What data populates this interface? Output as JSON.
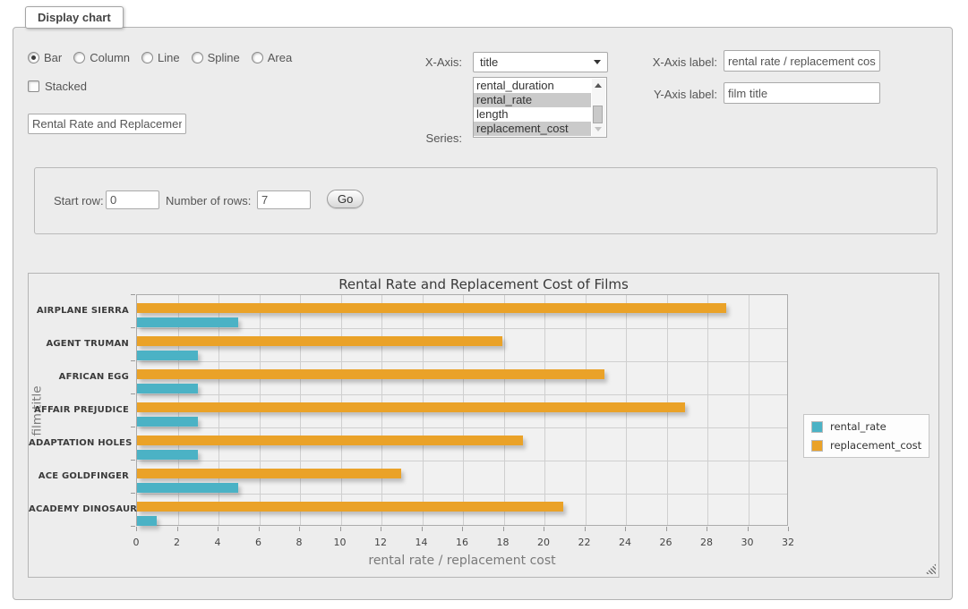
{
  "panel": {
    "legend_title": "Display chart",
    "chart_types": [
      {
        "label": "Bar",
        "checked": true
      },
      {
        "label": "Column",
        "checked": false
      },
      {
        "label": "Line",
        "checked": false
      },
      {
        "label": "Spline",
        "checked": false
      },
      {
        "label": "Area",
        "checked": false
      }
    ],
    "stacked_label": "Stacked",
    "chart_title_value": "Rental Rate and Replacement Cost of Films",
    "x_axis": {
      "label": "X-Axis:",
      "value": "title"
    },
    "series": {
      "label": "Series:",
      "options": [
        {
          "label": "rental_duration",
          "selected": false
        },
        {
          "label": "rental_rate",
          "selected": true
        },
        {
          "label": "length",
          "selected": false
        },
        {
          "label": "replacement_cost",
          "selected": true
        }
      ]
    },
    "x_axis_label": {
      "label": "X-Axis label:",
      "value": "rental rate / replacement cost"
    },
    "y_axis_label": {
      "label": "Y-Axis label:",
      "value": "film title"
    }
  },
  "rows_bar": {
    "start_row": {
      "label": "Start row:",
      "value": "0"
    },
    "num_rows": {
      "label": "Number of rows:",
      "value": "7"
    },
    "go_label": "Go"
  },
  "chart_data": {
    "type": "bar",
    "orientation": "horizontal",
    "title": "Rental Rate and Replacement Cost of Films",
    "xlabel": "rental rate / replacement cost",
    "ylabel": "film title",
    "categories": [
      "AIRPLANE SIERRA",
      "AGENT TRUMAN",
      "AFRICAN EGG",
      "AFFAIR PREJUDICE",
      "ADAPTATION HOLES",
      "ACE GOLDFINGER",
      "ACADEMY DINOSAUR"
    ],
    "series": [
      {
        "name": "rental_rate",
        "color": "#4bb2c5",
        "values": [
          4.99,
          2.99,
          2.99,
          2.99,
          2.99,
          4.99,
          0.99
        ]
      },
      {
        "name": "replacement_cost",
        "color": "#eaa228",
        "values": [
          28.99,
          17.99,
          22.99,
          26.99,
          18.99,
          12.99,
          20.99
        ]
      }
    ],
    "xlim": [
      0,
      32
    ],
    "xticks": [
      0,
      2,
      4,
      6,
      8,
      10,
      12,
      14,
      16,
      18,
      20,
      22,
      24,
      26,
      28,
      30,
      32
    ],
    "legend_position": "right",
    "grid": true
  }
}
